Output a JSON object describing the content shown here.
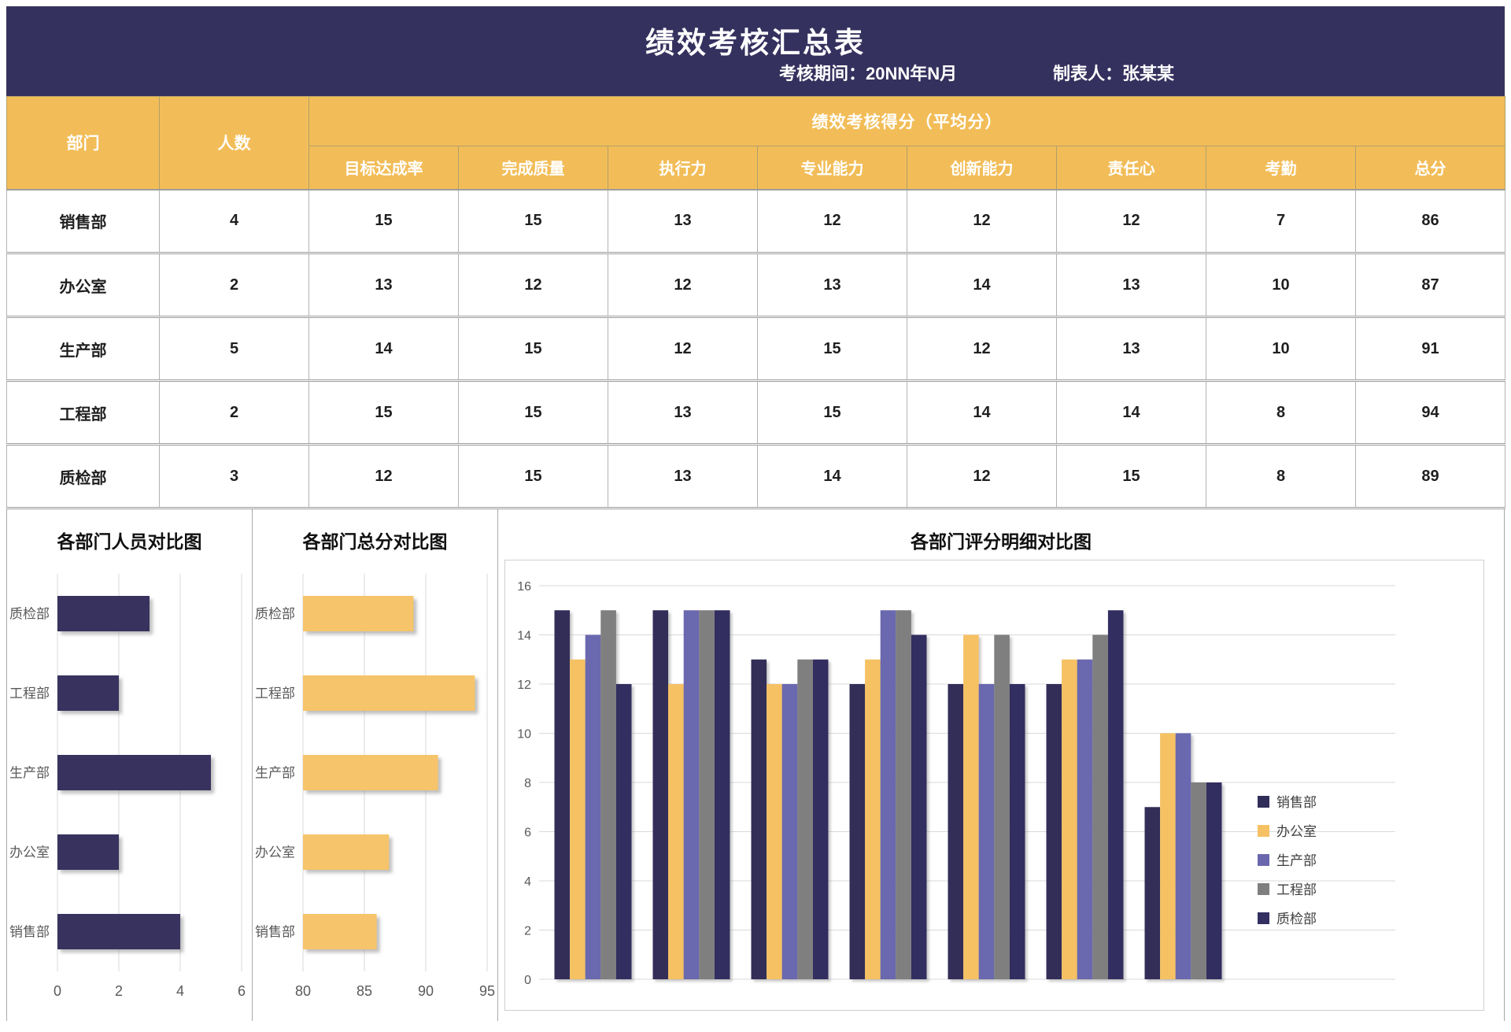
{
  "header": {
    "title": "绩效考核汇总表",
    "period_label": "考核期间：",
    "period_value": "20NN年N月",
    "preparer_label": "制表人：",
    "preparer_value": "张某某"
  },
  "table": {
    "col_department": "部门",
    "col_headcount": "人数",
    "score_group_header": "绩效考核得分（平均分）",
    "score_columns": [
      "目标达成率",
      "完成质量",
      "执行力",
      "专业能力",
      "创新能力",
      "责任心",
      "考勤",
      "总分"
    ],
    "rows": [
      {
        "department": "销售部",
        "headcount": "4",
        "scores": [
          "15",
          "15",
          "13",
          "12",
          "12",
          "12",
          "7"
        ],
        "total": "86"
      },
      {
        "department": "办公室",
        "headcount": "2",
        "scores": [
          "13",
          "12",
          "12",
          "13",
          "14",
          "13",
          "10"
        ],
        "total": "87"
      },
      {
        "department": "生产部",
        "headcount": "5",
        "scores": [
          "14",
          "15",
          "12",
          "15",
          "12",
          "13",
          "10"
        ],
        "total": "91"
      },
      {
        "department": "工程部",
        "headcount": "2",
        "scores": [
          "15",
          "15",
          "13",
          "15",
          "14",
          "14",
          "8"
        ],
        "total": "94"
      },
      {
        "department": "质检部",
        "headcount": "3",
        "scores": [
          "12",
          "15",
          "13",
          "14",
          "12",
          "15",
          "8"
        ],
        "total": "89"
      }
    ]
  },
  "colors": {
    "header_bg": "#35315e",
    "table_header_bg": "#f2bd58",
    "grid_line": "#d9d9d9",
    "axis_text": "#595959"
  },
  "chart_data": [
    {
      "type": "bar",
      "orientation": "horizontal",
      "title": "各部门人员对比图",
      "categories": [
        "质检部",
        "工程部",
        "生产部",
        "办公室",
        "销售部"
      ],
      "values": [
        3,
        2,
        5,
        2,
        4
      ],
      "xlim": [
        0,
        6
      ],
      "xticks": [
        0,
        2,
        4,
        6
      ],
      "bar_color": "#38335f",
      "grid": true,
      "legend": "none"
    },
    {
      "type": "bar",
      "orientation": "horizontal",
      "title": "各部门总分对比图",
      "categories": [
        "质检部",
        "工程部",
        "生产部",
        "办公室",
        "销售部"
      ],
      "values": [
        89,
        94,
        91,
        87,
        86
      ],
      "xlim": [
        80,
        95
      ],
      "xticks": [
        80,
        85,
        90,
        95
      ],
      "bar_color": "#f6c46a",
      "grid": true,
      "legend": "none"
    },
    {
      "type": "bar",
      "orientation": "vertical",
      "grouped": true,
      "title": "各部门评分明细对比图",
      "categories": [
        "目标达成率",
        "完成质量",
        "执行力",
        "专业能力",
        "创新能力",
        "责任心",
        "考勤"
      ],
      "category_labels_shown": false,
      "series": [
        {
          "name": "销售部",
          "color": "#312d59",
          "values": [
            15,
            15,
            13,
            12,
            12,
            12,
            7
          ]
        },
        {
          "name": "办公室",
          "color": "#f6c163",
          "values": [
            13,
            12,
            12,
            13,
            14,
            13,
            10
          ]
        },
        {
          "name": "生产部",
          "color": "#6b67ae",
          "values": [
            14,
            15,
            12,
            15,
            12,
            13,
            10
          ]
        },
        {
          "name": "工程部",
          "color": "#7f7f7f",
          "values": [
            15,
            15,
            13,
            15,
            14,
            14,
            8
          ]
        },
        {
          "name": "质检部",
          "color": "#332f61",
          "values": [
            12,
            15,
            13,
            14,
            12,
            15,
            8
          ]
        }
      ],
      "ylim": [
        0,
        16
      ],
      "yticks": [
        0,
        2,
        4,
        6,
        8,
        10,
        12,
        14,
        16
      ],
      "grid": true,
      "legend_position": "right"
    }
  ]
}
